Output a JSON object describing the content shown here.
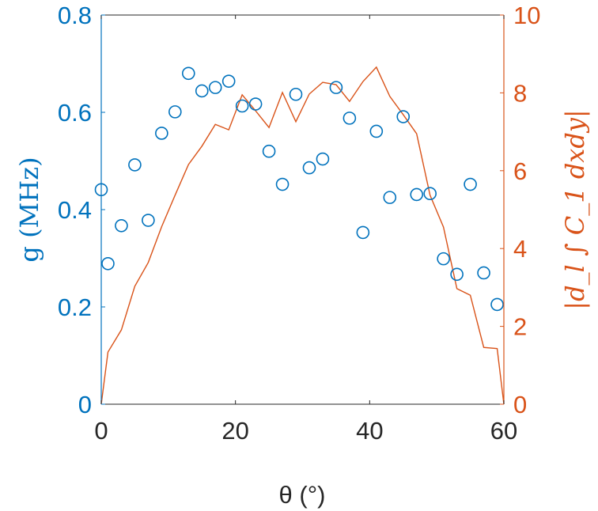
{
  "chart_data": {
    "type": "scatter+line",
    "xlabel": "θ (°)",
    "ylabel_left": "g (MHz)",
    "ylabel_right": "|d_l ∫ C_1 dxdy|",
    "xlim": [
      0,
      60
    ],
    "ylim_left": [
      0,
      0.8
    ],
    "ylim_right": [
      0,
      10
    ],
    "xticks": [
      "0",
      "20",
      "40",
      "60"
    ],
    "yticks_left": [
      "0",
      "0.2",
      "0.4",
      "0.6",
      "0.8"
    ],
    "yticks_right": [
      "0",
      "2",
      "4",
      "6",
      "8",
      "10"
    ],
    "grid": false,
    "colors": {
      "left": "#0072BD",
      "right": "#D95319",
      "axes": "#262626"
    },
    "series": [
      {
        "axis": "left",
        "style": "open-circle-markers",
        "x": [
          0,
          1,
          3,
          5,
          7,
          9,
          11,
          13,
          15,
          17,
          19,
          21,
          23,
          25,
          27,
          29,
          31,
          33,
          35,
          37,
          39,
          41,
          43,
          45,
          47,
          49,
          51,
          53,
          55,
          57,
          59
        ],
        "y": [
          0.441,
          0.289,
          0.367,
          0.492,
          0.378,
          0.557,
          0.601,
          0.68,
          0.644,
          0.651,
          0.664,
          0.613,
          0.617,
          0.52,
          0.452,
          0.637,
          0.486,
          0.504,
          0.651,
          0.588,
          0.353,
          0.561,
          0.425,
          0.591,
          0.431,
          0.433,
          0.299,
          0.267,
          0.452,
          0.27,
          0.205
        ]
      },
      {
        "axis": "right",
        "style": "line",
        "x": [
          0,
          1,
          3,
          5,
          7,
          9,
          11,
          13,
          15,
          17,
          19,
          21,
          23,
          25,
          27,
          29,
          31,
          33,
          35,
          37,
          39,
          41,
          43,
          45,
          47,
          49,
          51,
          53,
          55,
          57,
          59,
          60
        ],
        "y": [
          0,
          1.34,
          1.91,
          3.03,
          3.64,
          4.56,
          5.37,
          6.16,
          6.63,
          7.19,
          7.05,
          7.95,
          7.54,
          7.11,
          8.01,
          7.26,
          7.97,
          8.27,
          8.21,
          7.78,
          8.29,
          8.66,
          7.91,
          7.44,
          6.95,
          5.37,
          4.55,
          2.97,
          2.8,
          1.46,
          1.43,
          0
        ]
      }
    ]
  }
}
